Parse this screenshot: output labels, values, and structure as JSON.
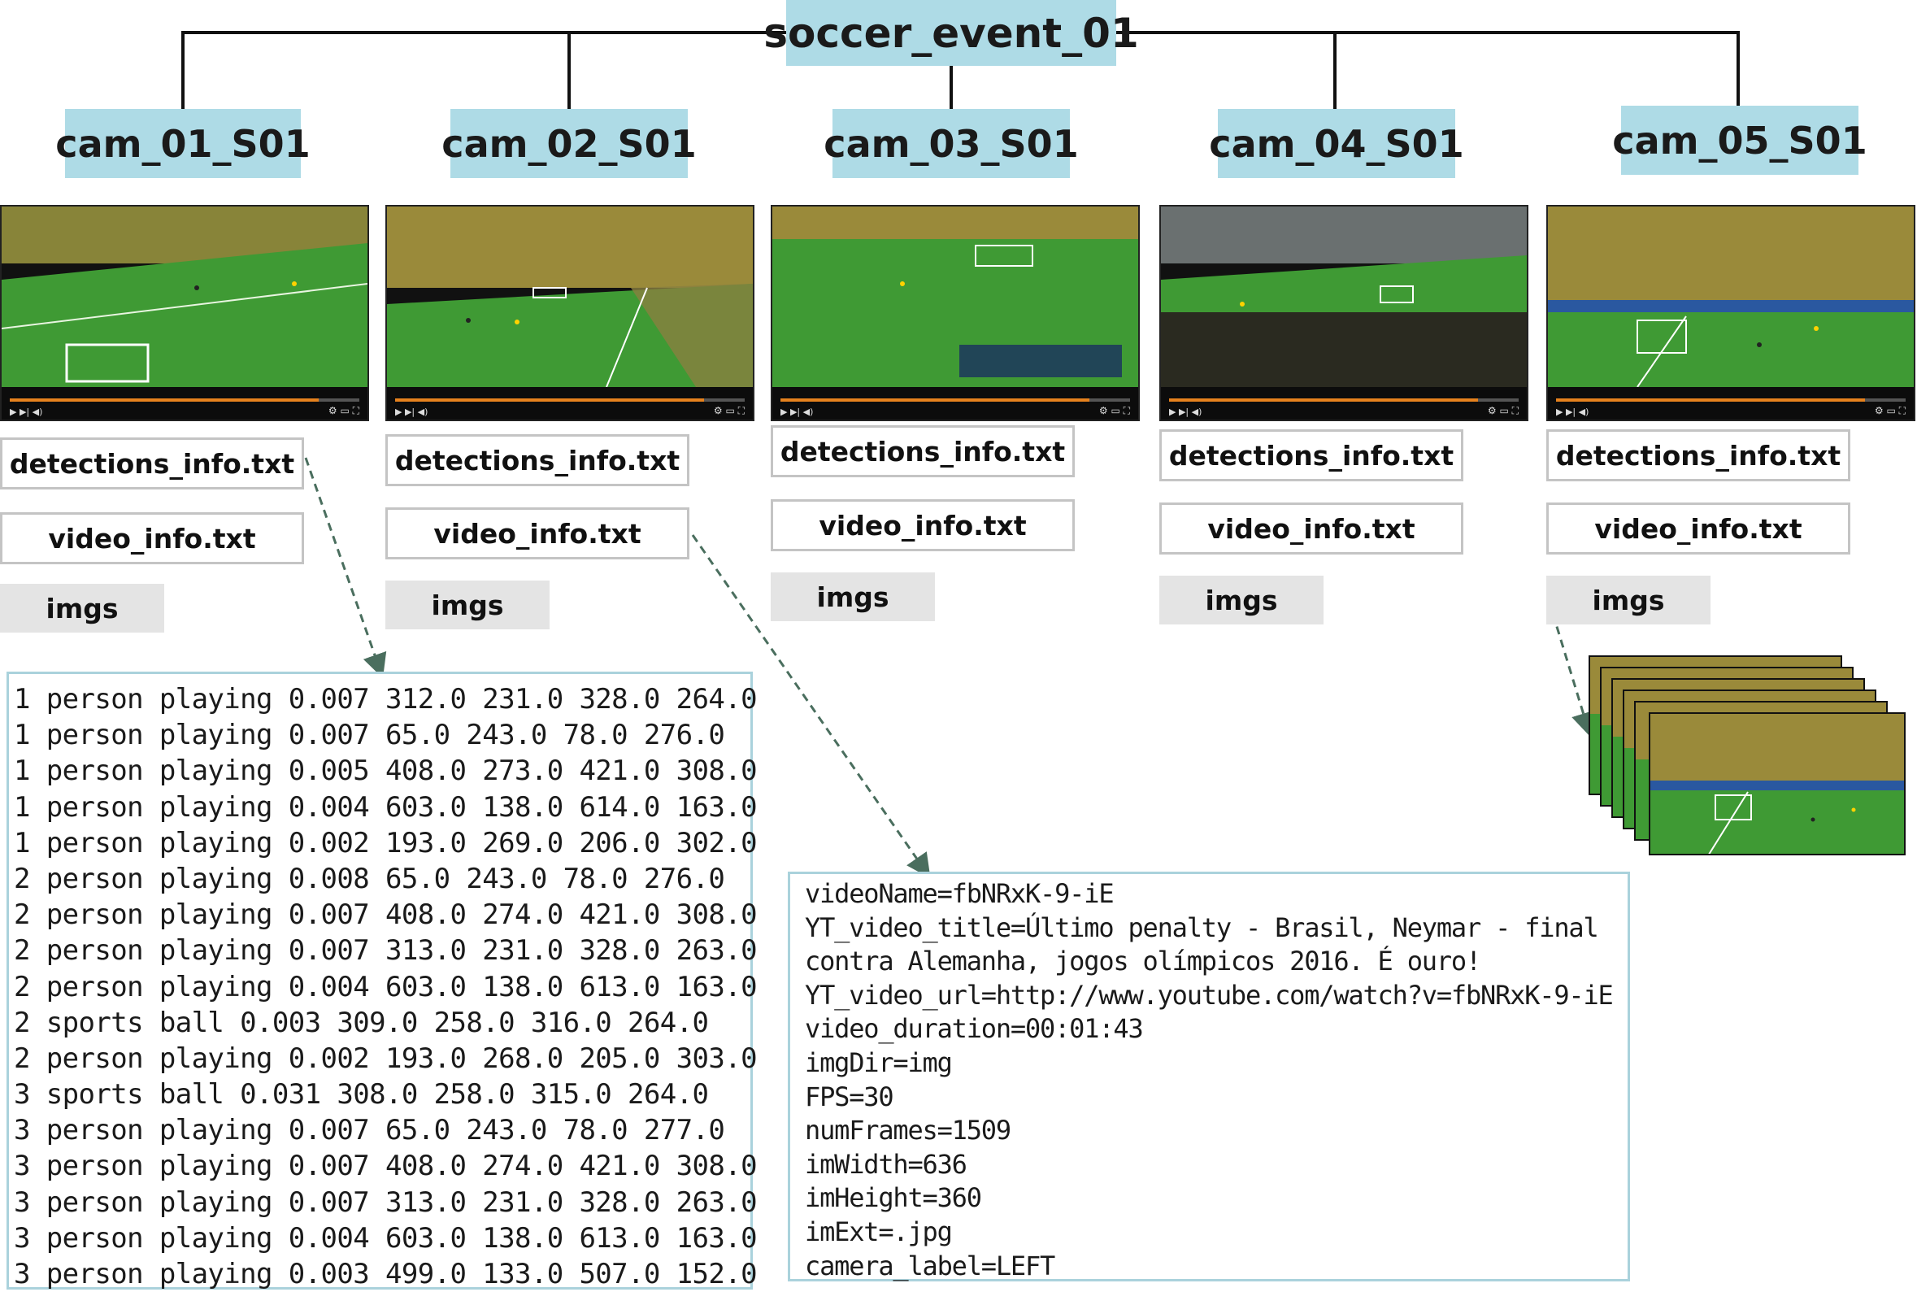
{
  "root": {
    "label": "soccer_event_01"
  },
  "cameras": [
    {
      "label": "cam_01_S01",
      "files": [
        "detections_info.txt",
        "video_info.txt"
      ],
      "imgs_label": "imgs"
    },
    {
      "label": "cam_02_S01",
      "files": [
        "detections_info.txt",
        "video_info.txt"
      ],
      "imgs_label": "imgs"
    },
    {
      "label": "cam_03_S01",
      "files": [
        "detections_info.txt",
        "video_info.txt"
      ],
      "imgs_label": "imgs"
    },
    {
      "label": "cam_04_S01",
      "files": [
        "detections_info.txt",
        "video_info.txt"
      ],
      "imgs_label": "imgs"
    },
    {
      "label": "cam_05_S01",
      "files": [
        "detections_info.txt",
        "video_info.txt"
      ],
      "imgs_label": "imgs"
    }
  ],
  "detections_lines": [
    "1 person playing 0.007 312.0 231.0 328.0 264.0",
    "1 person playing 0.007 65.0 243.0 78.0 276.0",
    "1 person playing 0.005 408.0 273.0 421.0 308.0",
    "1 person playing 0.004 603.0 138.0 614.0 163.0",
    "1 person playing 0.002 193.0 269.0 206.0 302.0",
    "2 person playing 0.008 65.0 243.0 78.0 276.0",
    "2 person playing 0.007 408.0 274.0 421.0 308.0",
    "2 person playing 0.007 313.0 231.0 328.0 263.0",
    "2 person playing 0.004 603.0 138.0 613.0 163.0",
    "2 sports ball 0.003 309.0 258.0 316.0 264.0",
    "2 person playing 0.002 193.0 268.0 205.0 303.0",
    "3 sports ball 0.031 308.0 258.0 315.0 264.0",
    "3 person playing 0.007 65.0 243.0 78.0 277.0",
    "3 person playing 0.007 408.0 274.0 421.0 308.0",
    "3 person playing 0.007 313.0 231.0 328.0 263.0",
    "3 person playing 0.004 603.0 138.0 613.0 163.0",
    "3 person playing 0.003 499.0 133.0 507.0 152.0"
  ],
  "video_info_lines": [
    "videoName=fbNRxK-9-iE",
    "YT_video_title=Último penalty - Brasil, Neymar - final",
    "contra Alemanha, jogos olímpicos 2016. É ouro!",
    "YT_video_url=http://www.youtube.com/watch?v=fbNRxK-9-iE",
    "video_duration=00:01:43",
    "imgDir=img",
    "FPS=30",
    "numFrames=1509",
    "imWidth=636",
    "imHeight=360",
    "imExt=.jpg",
    "camera_label=LEFT"
  ],
  "colors": {
    "label_fill": "#aedbe6",
    "panel_border": "#aad2dc",
    "file_border": "#c4c4c4",
    "imgs_fill": "#e4e4e4",
    "arrow": "#4a6e5e",
    "pitch": "#3f9a34",
    "crowd": "#9a8a3a"
  }
}
